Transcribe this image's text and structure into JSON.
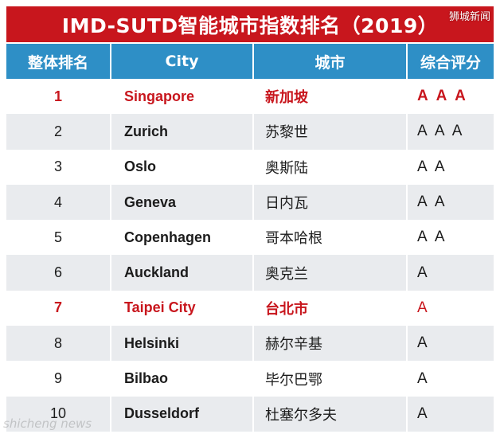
{
  "title": "IMD-SUTD智能城市指数排名（2019）",
  "watermark_top": "狮城新闻",
  "watermark_bottom": "shicheng news",
  "colors": {
    "title_bg": "#c8161d",
    "header_bg": "#2e8fc6",
    "highlight_text": "#c8161d",
    "zebra": "#e9ebee"
  },
  "table": {
    "headers": [
      "整体排名",
      "City",
      "城市",
      "综合评分"
    ],
    "rows": [
      {
        "rank": "1",
        "city": "Singapore",
        "city_cn": "新加坡",
        "score": "A A A",
        "highlight": true
      },
      {
        "rank": "2",
        "city": "Zurich",
        "city_cn": "苏黎世",
        "score": "A A A",
        "highlight": false
      },
      {
        "rank": "3",
        "city": "Oslo",
        "city_cn": "奥斯陆",
        "score": "A A",
        "highlight": false
      },
      {
        "rank": "4",
        "city": "Geneva",
        "city_cn": "日内瓦",
        "score": "A A",
        "highlight": false
      },
      {
        "rank": "5",
        "city": "Copenhagen",
        "city_cn": "哥本哈根",
        "score": "A A",
        "highlight": false
      },
      {
        "rank": "6",
        "city": "Auckland",
        "city_cn": "奥克兰",
        "score": "A",
        "highlight": false
      },
      {
        "rank": "7",
        "city": "Taipei City",
        "city_cn": "台北市",
        "score": "A",
        "highlight": true
      },
      {
        "rank": "8",
        "city": "Helsinki",
        "city_cn": "赫尔辛基",
        "score": "A",
        "highlight": false
      },
      {
        "rank": "9",
        "city": "Bilbao",
        "city_cn": "毕尔巴鄂",
        "score": "A",
        "highlight": false
      },
      {
        "rank": "10",
        "city": "Dusseldorf",
        "city_cn": "杜塞尔多夫",
        "score": "A",
        "highlight": false
      }
    ]
  }
}
